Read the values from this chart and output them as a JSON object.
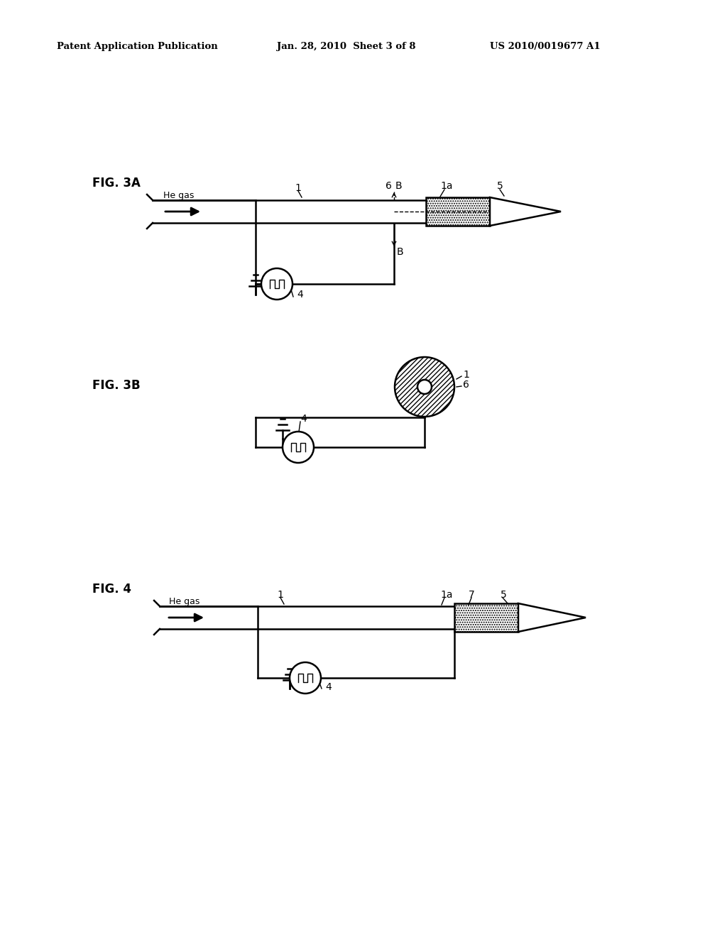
{
  "bg_color": "#ffffff",
  "header_left": "Patent Application Publication",
  "header_center": "Jan. 28, 2010  Sheet 3 of 8",
  "header_right": "US 2010/0019677 A1",
  "fig3A_label": "FIG. 3A",
  "fig3B_label": "FIG. 3B",
  "fig4_label": "FIG. 4",
  "line_color": "#000000",
  "lw": 1.8,
  "lw_thin": 1.0
}
